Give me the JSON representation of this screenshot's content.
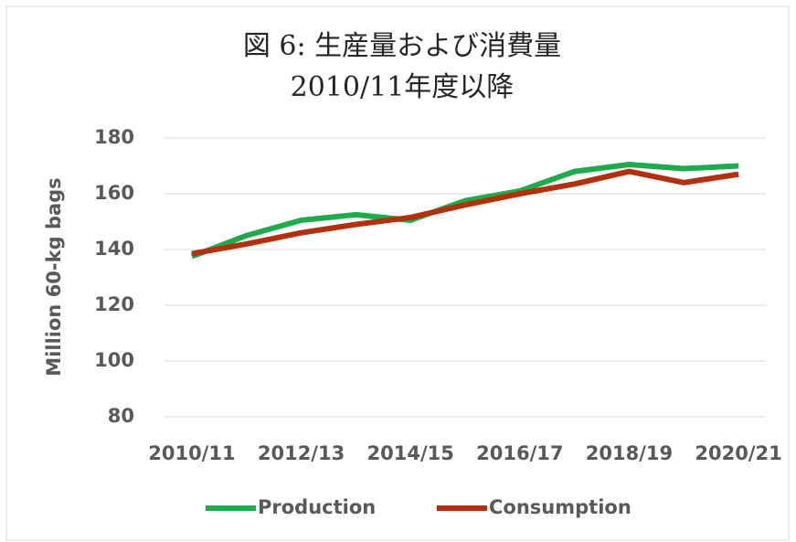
{
  "chart_data": {
    "type": "line",
    "title": "図 6: 生産量および消費量",
    "subtitle": "2010/11年度以降",
    "y_label": "Million 60-kg bags",
    "categories": [
      "2010/11",
      null,
      "2012/13",
      null,
      "2014/15",
      null,
      "2016/17",
      null,
      "2018/19",
      null,
      "2020/21"
    ],
    "series": [
      {
        "name": "Production",
        "color": "#1faa4b",
        "values": [
          137.5,
          145,
          150.5,
          152.5,
          150.5,
          157.5,
          161,
          168,
          170.5,
          169,
          170
        ]
      },
      {
        "name": "Consumption",
        "color": "#b3300d",
        "values": [
          138.5,
          142,
          146,
          149,
          151.5,
          156,
          160,
          163.5,
          168,
          164,
          167
        ]
      }
    ],
    "ylim": [
      80,
      180
    ],
    "yticks": [
      80,
      100,
      120,
      140,
      160,
      180
    ],
    "grid": true,
    "legend": "bottom"
  }
}
